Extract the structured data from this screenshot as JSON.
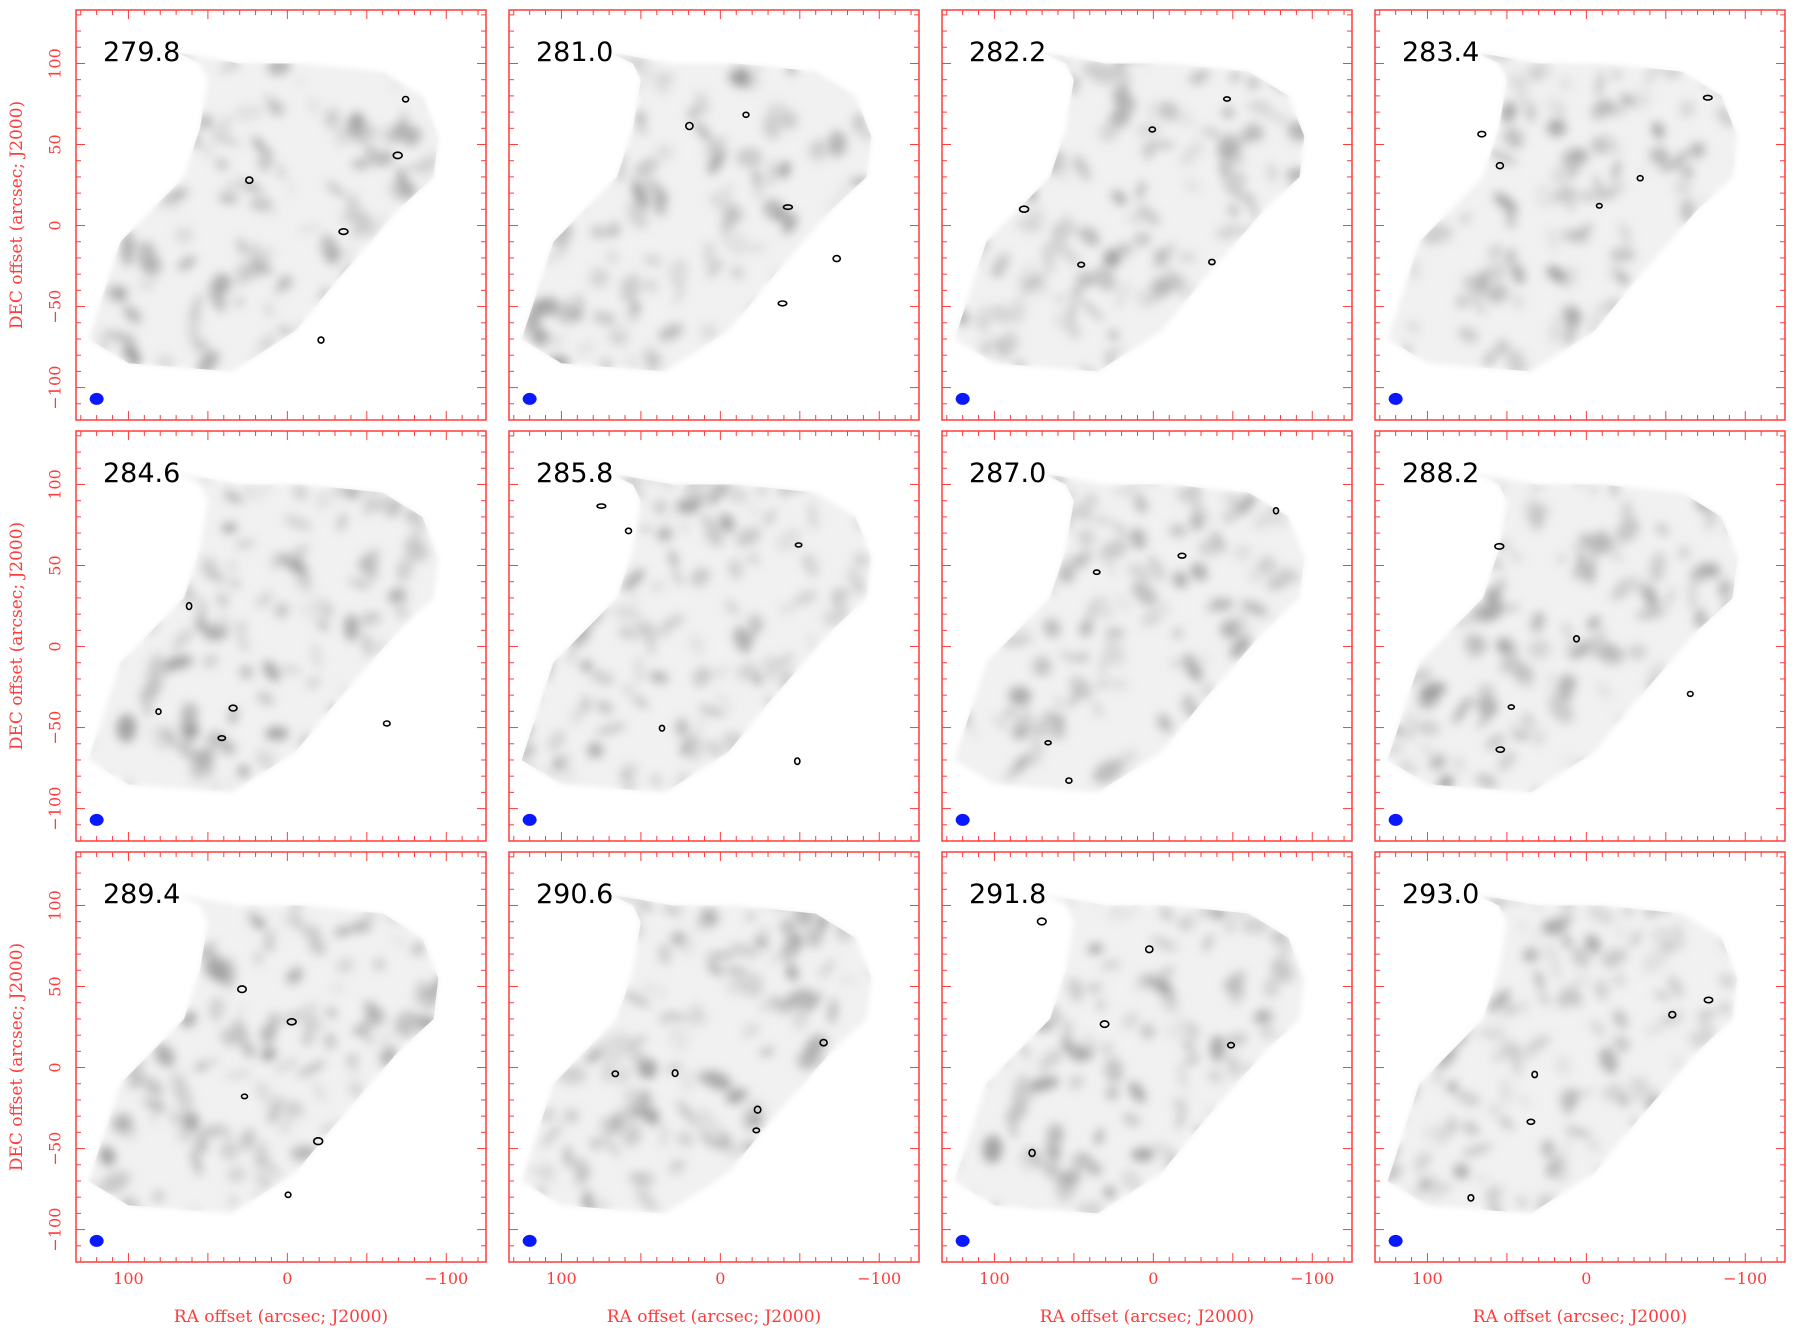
{
  "figure": {
    "xlabel": "RA offset (arcsec; J2000)",
    "ylabel": "DEC offset (arcsec; J2000)",
    "x_ticks": [
      {
        "value": 100,
        "label": "100"
      },
      {
        "value": 50,
        "label": ""
      },
      {
        "value": 0,
        "label": "0"
      },
      {
        "value": -50,
        "label": ""
      },
      {
        "value": -100,
        "label": "−100"
      }
    ],
    "y_ticks": [
      {
        "value": -100,
        "label": "−100"
      },
      {
        "value": -50,
        "label": "−50"
      },
      {
        "value": 0,
        "label": "0"
      },
      {
        "value": 50,
        "label": "50"
      },
      {
        "value": 100,
        "label": "100"
      }
    ],
    "xlim": [
      133,
      -125
    ],
    "ylim": [
      -120,
      133
    ],
    "colors": {
      "axis": "#ff3b3b",
      "beam": "#0a18ff",
      "map": "#9a9a9a",
      "contour": "#000000"
    },
    "panels": [
      {
        "label": "279.8"
      },
      {
        "label": "281.0"
      },
      {
        "label": "282.2"
      },
      {
        "label": "283.4"
      },
      {
        "label": "284.6"
      },
      {
        "label": "285.8"
      },
      {
        "label": "287.0"
      },
      {
        "label": "288.2"
      },
      {
        "label": "289.4"
      },
      {
        "label": "290.6"
      },
      {
        "label": "291.8"
      },
      {
        "label": "293.0"
      }
    ]
  }
}
